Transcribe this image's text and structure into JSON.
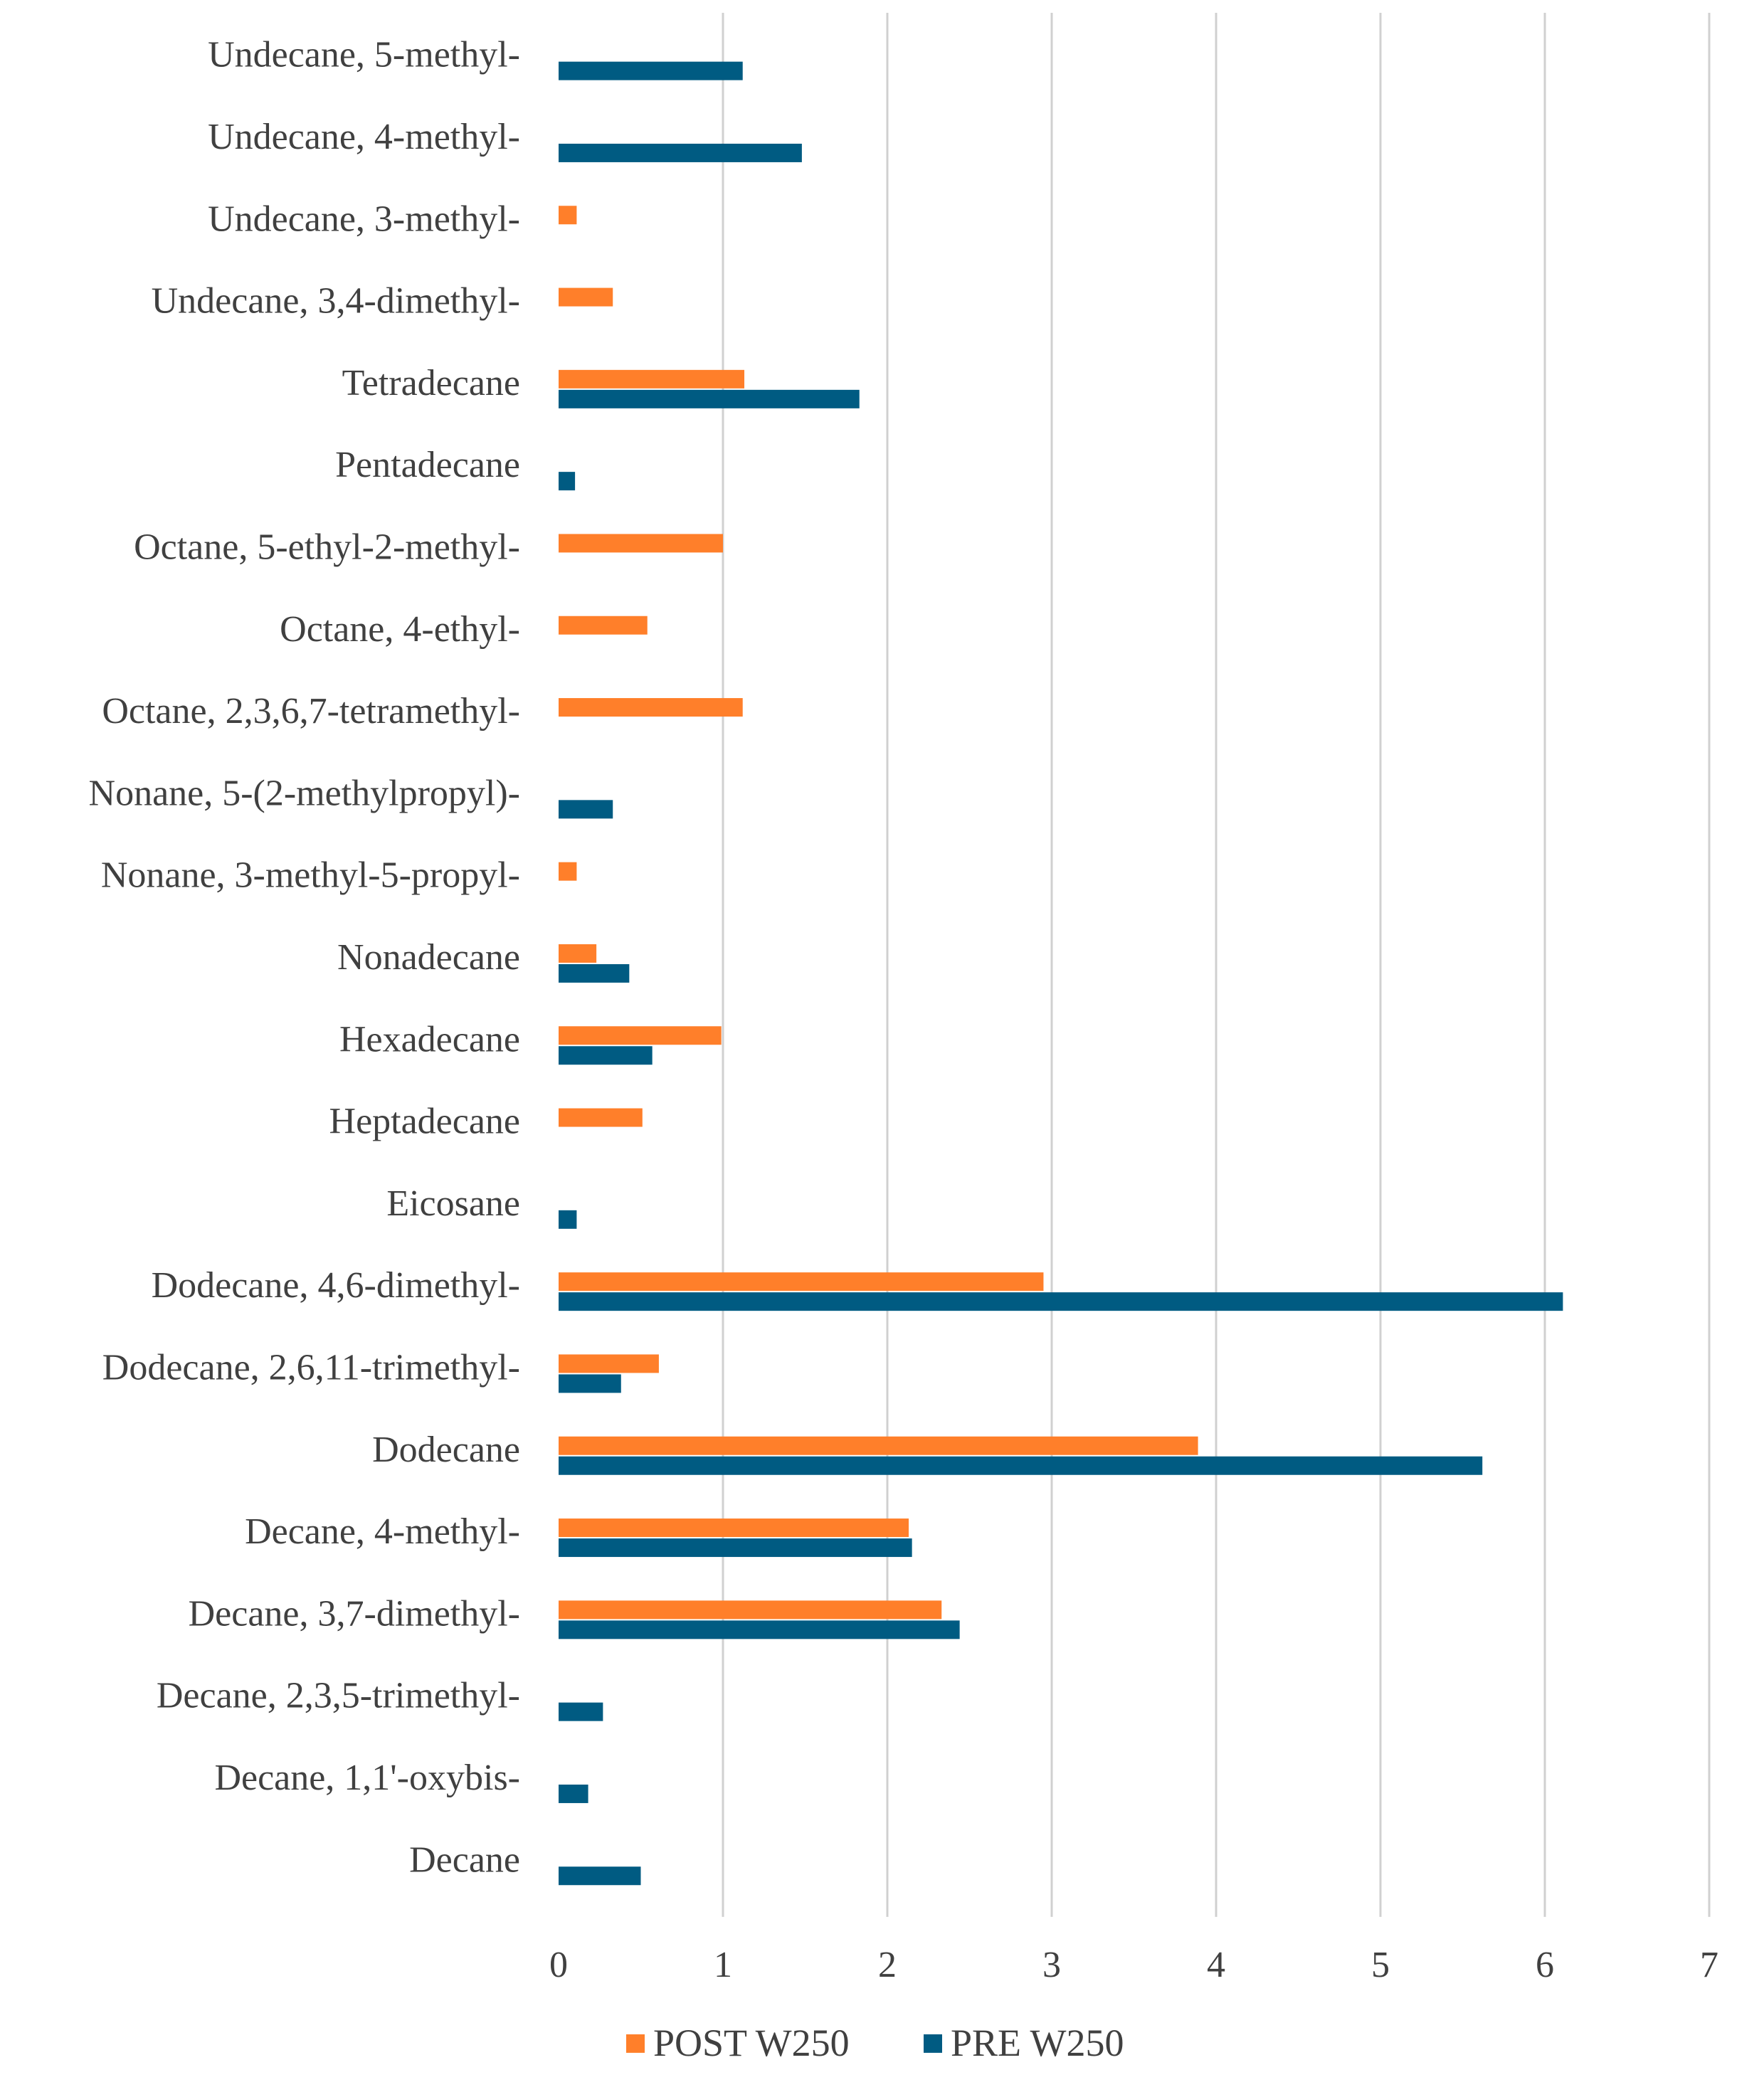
{
  "chart_data": {
    "type": "bar",
    "orientation": "horizontal",
    "title": "",
    "xlabel": "",
    "ylabel": "",
    "xlim": [
      0,
      7
    ],
    "x_ticks": [
      "0",
      "1",
      "2",
      "3",
      "4",
      "5",
      "6",
      "7"
    ],
    "grid": true,
    "legend_position": "bottom",
    "colors": {
      "post": "#FF7F2A",
      "pre": "#005B82",
      "grid": "#D0D0D0"
    },
    "categories": [
      "Undecane, 5-methyl-",
      "Undecane, 4-methyl-",
      "Undecane, 3-methyl-",
      "Undecane, 3,4-dimethyl-",
      "Tetradecane",
      "Pentadecane",
      "Octane, 5-ethyl-2-methyl-",
      "Octane, 4-ethyl-",
      "Octane, 2,3,6,7-tetramethyl-",
      "Nonane, 5-(2-methylpropyl)-",
      "Nonane, 3-methyl-5-propyl-",
      "Nonadecane",
      "Hexadecane",
      "Heptadecane",
      "Eicosane",
      "Dodecane, 4,6-dimethyl-",
      "Dodecane, 2,6,11-trimethyl-",
      "Dodecane",
      "Decane, 4-methyl-",
      "Decane, 3,7-dimethyl-",
      "Decane, 2,3,5-trimethyl-",
      "Decane, 1,1'-oxybis-",
      "Decane"
    ],
    "series": [
      {
        "name": "POST W250",
        "color": "#FF7F2A",
        "values": [
          0,
          0,
          0.11,
          0.33,
          1.13,
          0,
          1.0,
          0.54,
          1.12,
          0,
          0.11,
          0.23,
          0.99,
          0.51,
          0,
          2.95,
          0.61,
          3.89,
          2.13,
          2.33,
          0,
          0,
          0
        ]
      },
      {
        "name": "PRE W250",
        "color": "#005B82",
        "values": [
          1.12,
          1.48,
          0,
          0,
          1.83,
          0.1,
          0,
          0,
          0,
          0.33,
          0,
          0.43,
          0.57,
          0,
          0.11,
          6.11,
          0.38,
          5.62,
          2.15,
          2.44,
          0.27,
          0.18,
          0.5
        ]
      }
    ]
  }
}
